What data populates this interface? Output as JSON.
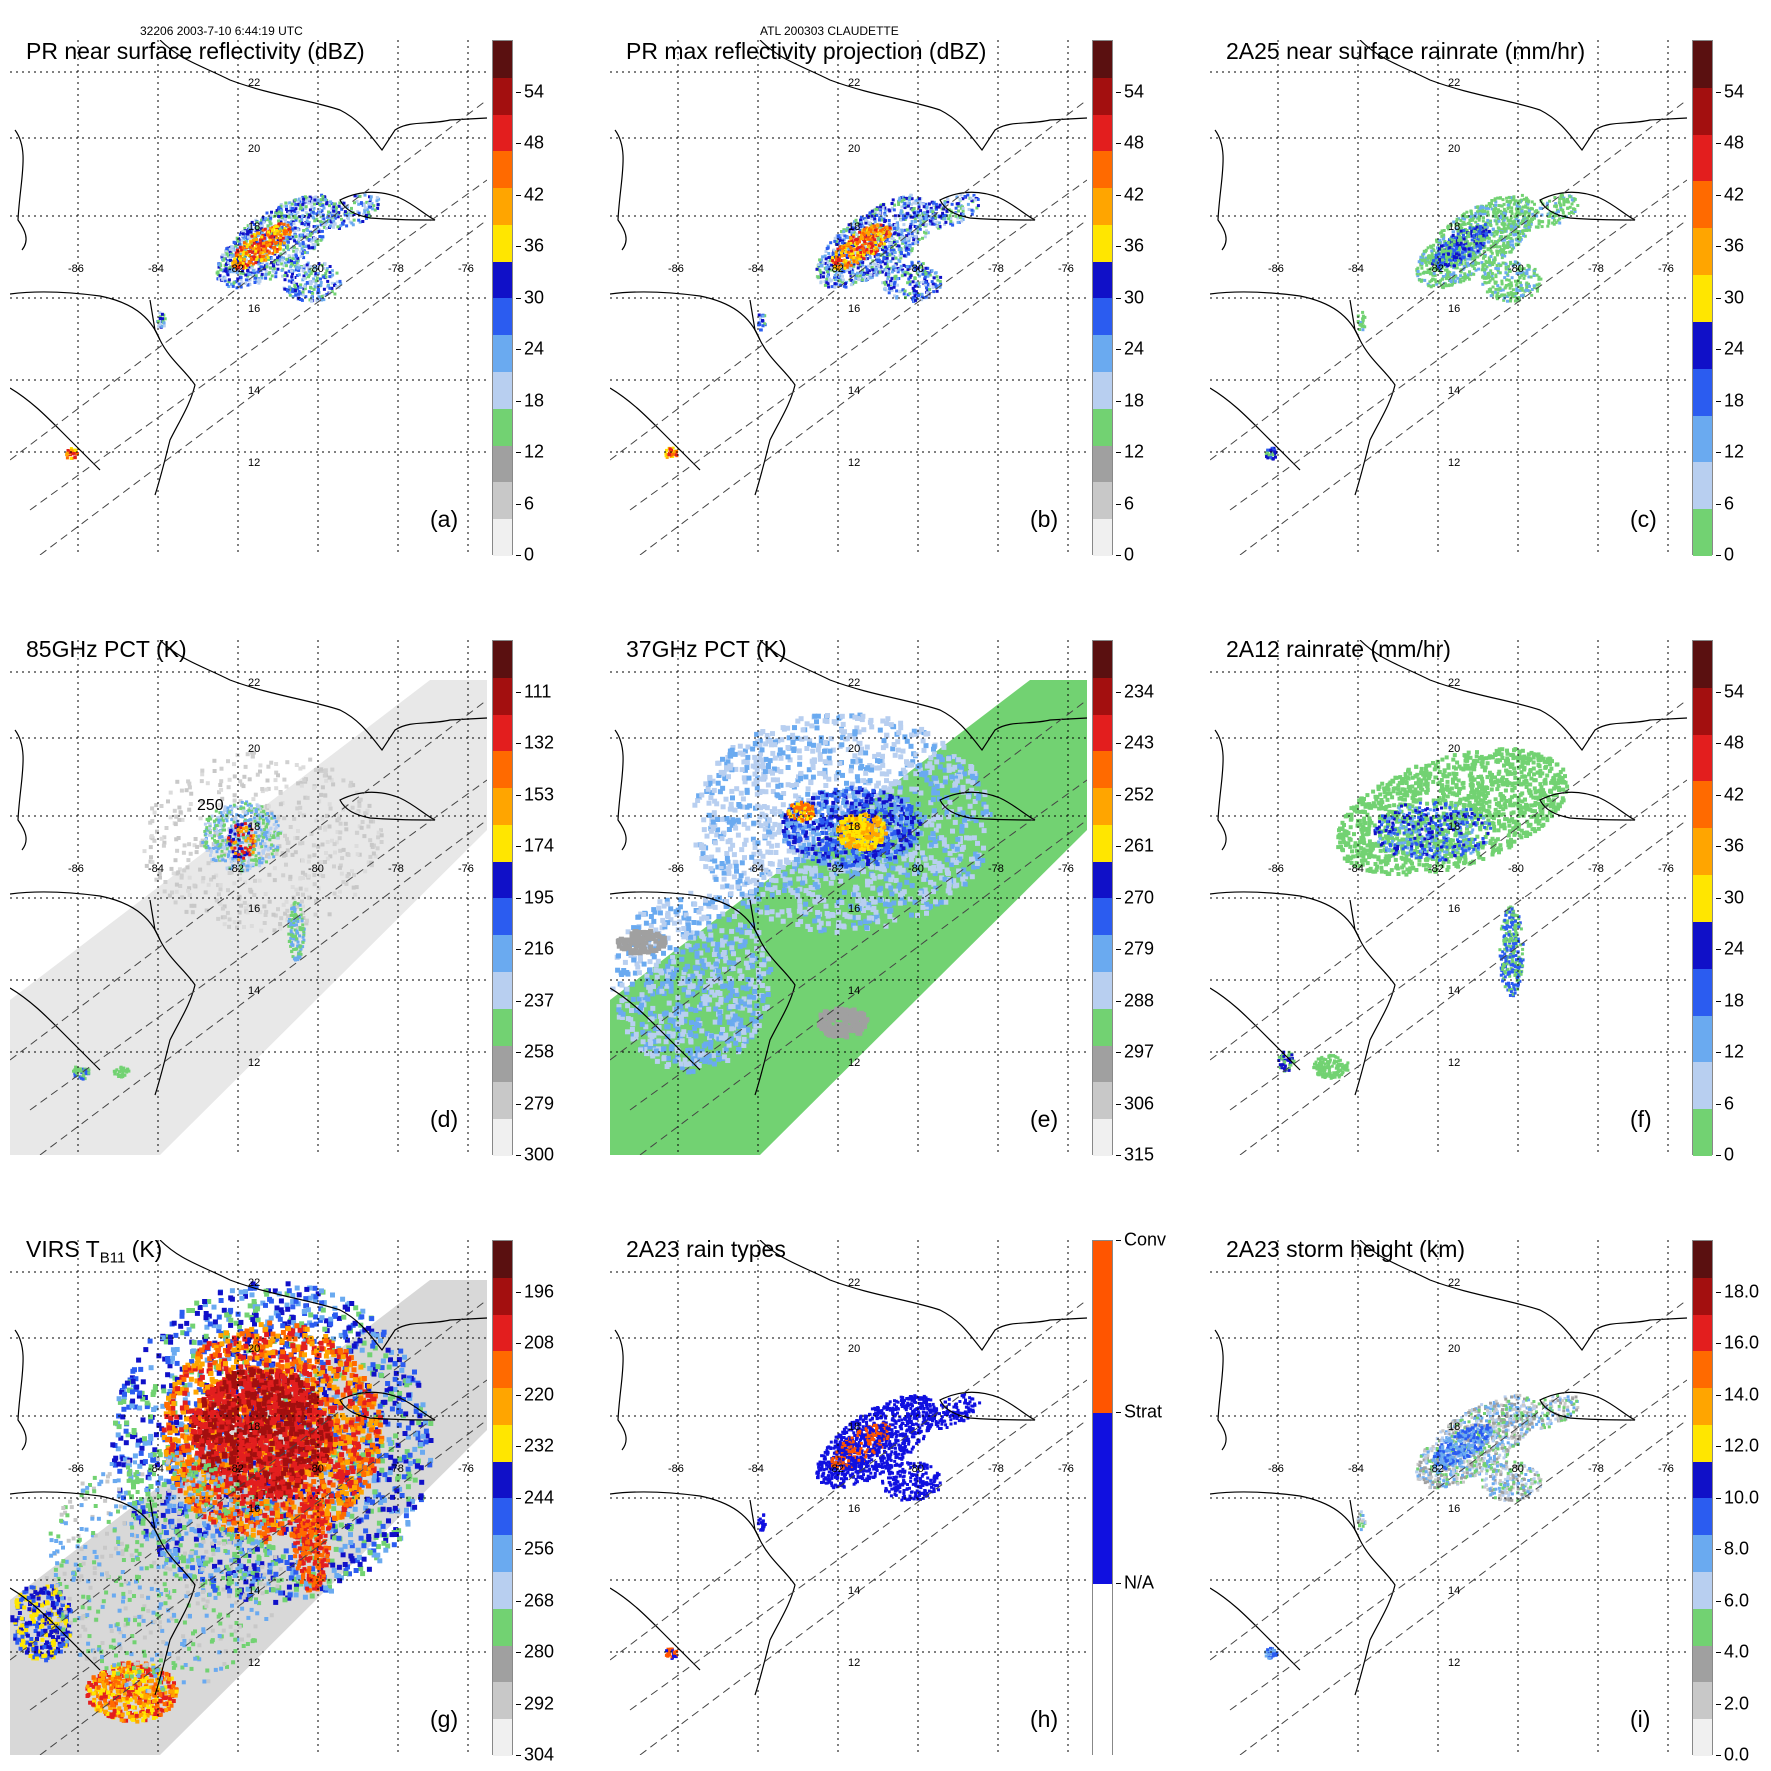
{
  "header": {
    "left": "32206 2003-7-10 6:44:19 UTC",
    "center": "ATL 200303 CLAUDETTE"
  },
  "map_labels": {
    "lat": [
      "22",
      "20",
      "18",
      "16",
      "14",
      "12"
    ],
    "lon": [
      "-86",
      "-84",
      "-82",
      "-80",
      "-78",
      "-76"
    ]
  },
  "panels": [
    {
      "id": "a",
      "title": "PR near surface reflectivity (dBZ)",
      "label": "(a)",
      "style": "pr",
      "ticks": [
        "54",
        "48",
        "42",
        "36",
        "30",
        "24",
        "18",
        "12",
        "6",
        "0"
      ],
      "colors": [
        "#5a1010",
        "#a30f0f",
        "#e31e1e",
        "#ff6a00",
        "#ffa500",
        "#ffe600",
        "#1010c8",
        "#2b5cf0",
        "#6aaaf0",
        "#b8cff0",
        "#72d272",
        "#a0a0a0",
        "#c8c8c8",
        "#f0f0f0"
      ]
    },
    {
      "id": "b",
      "title": "PR max reflectivity projection (dBZ)",
      "label": "(b)",
      "style": "pr",
      "ticks": [
        "54",
        "48",
        "42",
        "36",
        "30",
        "24",
        "18",
        "12",
        "6",
        "0"
      ],
      "colors": [
        "#5a1010",
        "#a30f0f",
        "#e31e1e",
        "#ff6a00",
        "#ffa500",
        "#ffe600",
        "#1010c8",
        "#2b5cf0",
        "#6aaaf0",
        "#b8cff0",
        "#72d272",
        "#a0a0a0",
        "#c8c8c8",
        "#f0f0f0"
      ]
    },
    {
      "id": "c",
      "title": "2A25 near surface rainrate (mm/hr)",
      "label": "(c)",
      "style": "rain",
      "ticks": [
        "54",
        "48",
        "42",
        "36",
        "30",
        "24",
        "18",
        "12",
        "6",
        "0"
      ],
      "colors": [
        "#5a1010",
        "#a30f0f",
        "#e31e1e",
        "#ff6a00",
        "#ffa500",
        "#ffe600",
        "#1010c8",
        "#2b5cf0",
        "#6aaaf0",
        "#b8cff0",
        "#72d272"
      ]
    },
    {
      "id": "d",
      "title": "85GHz PCT (K)",
      "label": "(d)",
      "style": "pct85",
      "contour_label": "250",
      "ticks": [
        "111",
        "132",
        "153",
        "174",
        "195",
        "216",
        "237",
        "258",
        "279",
        "300"
      ],
      "colors": [
        "#5a1010",
        "#a30f0f",
        "#e31e1e",
        "#ff6a00",
        "#ffa500",
        "#ffe600",
        "#1010c8",
        "#2b5cf0",
        "#6aaaf0",
        "#b8cff0",
        "#72d272",
        "#a0a0a0",
        "#c8c8c8",
        "#f0f0f0"
      ]
    },
    {
      "id": "e",
      "title": "37GHz PCT (K)",
      "label": "(e)",
      "style": "pct37",
      "ticks": [
        "234",
        "243",
        "252",
        "261",
        "270",
        "279",
        "288",
        "297",
        "306",
        "315"
      ],
      "colors": [
        "#5a1010",
        "#a30f0f",
        "#e31e1e",
        "#ff6a00",
        "#ffa500",
        "#ffe600",
        "#1010c8",
        "#2b5cf0",
        "#6aaaf0",
        "#b8cff0",
        "#72d272",
        "#a0a0a0",
        "#c8c8c8",
        "#f0f0f0"
      ]
    },
    {
      "id": "f",
      "title": "2A12 rainrate (mm/hr)",
      "label": "(f)",
      "style": "tmi",
      "ticks": [
        "54",
        "48",
        "42",
        "36",
        "30",
        "24",
        "18",
        "12",
        "6",
        "0"
      ],
      "colors": [
        "#5a1010",
        "#a30f0f",
        "#e31e1e",
        "#ff6a00",
        "#ffa500",
        "#ffe600",
        "#1010c8",
        "#2b5cf0",
        "#6aaaf0",
        "#b8cff0",
        "#72d272"
      ]
    },
    {
      "id": "g",
      "title": "VIRS T",
      "title_sub": "B11",
      "title_tail": " (K)",
      "label": "(g)",
      "style": "virs",
      "ticks": [
        "196",
        "208",
        "220",
        "232",
        "244",
        "256",
        "268",
        "280",
        "292",
        "304"
      ],
      "colors": [
        "#5a1010",
        "#a30f0f",
        "#e31e1e",
        "#ff6a00",
        "#ffa500",
        "#ffe600",
        "#1010c8",
        "#2b5cf0",
        "#6aaaf0",
        "#b8cff0",
        "#72d272",
        "#a0a0a0",
        "#c8c8c8",
        "#f0f0f0"
      ]
    },
    {
      "id": "h",
      "title": "2A23 rain types",
      "label": "(h)",
      "style": "types",
      "ticks": [
        "Conv",
        "Strat",
        "N/A"
      ],
      "colors": [
        "#ff5500",
        "#1010e0",
        "#ffffff"
      ]
    },
    {
      "id": "i",
      "title": "2A23 storm height (km)",
      "label": "(i)",
      "style": "height",
      "ticks": [
        "18.0",
        "16.0",
        "14.0",
        "12.0",
        "10.0",
        "8.0",
        "6.0",
        "4.0",
        "2.0",
        "0.0"
      ],
      "colors": [
        "#5a1010",
        "#a30f0f",
        "#e31e1e",
        "#ff6a00",
        "#ffa500",
        "#ffe600",
        "#1010c8",
        "#2b5cf0",
        "#6aaaf0",
        "#b8cff0",
        "#72d272",
        "#a0a0a0",
        "#c8c8c8",
        "#f0f0f0"
      ]
    }
  ]
}
